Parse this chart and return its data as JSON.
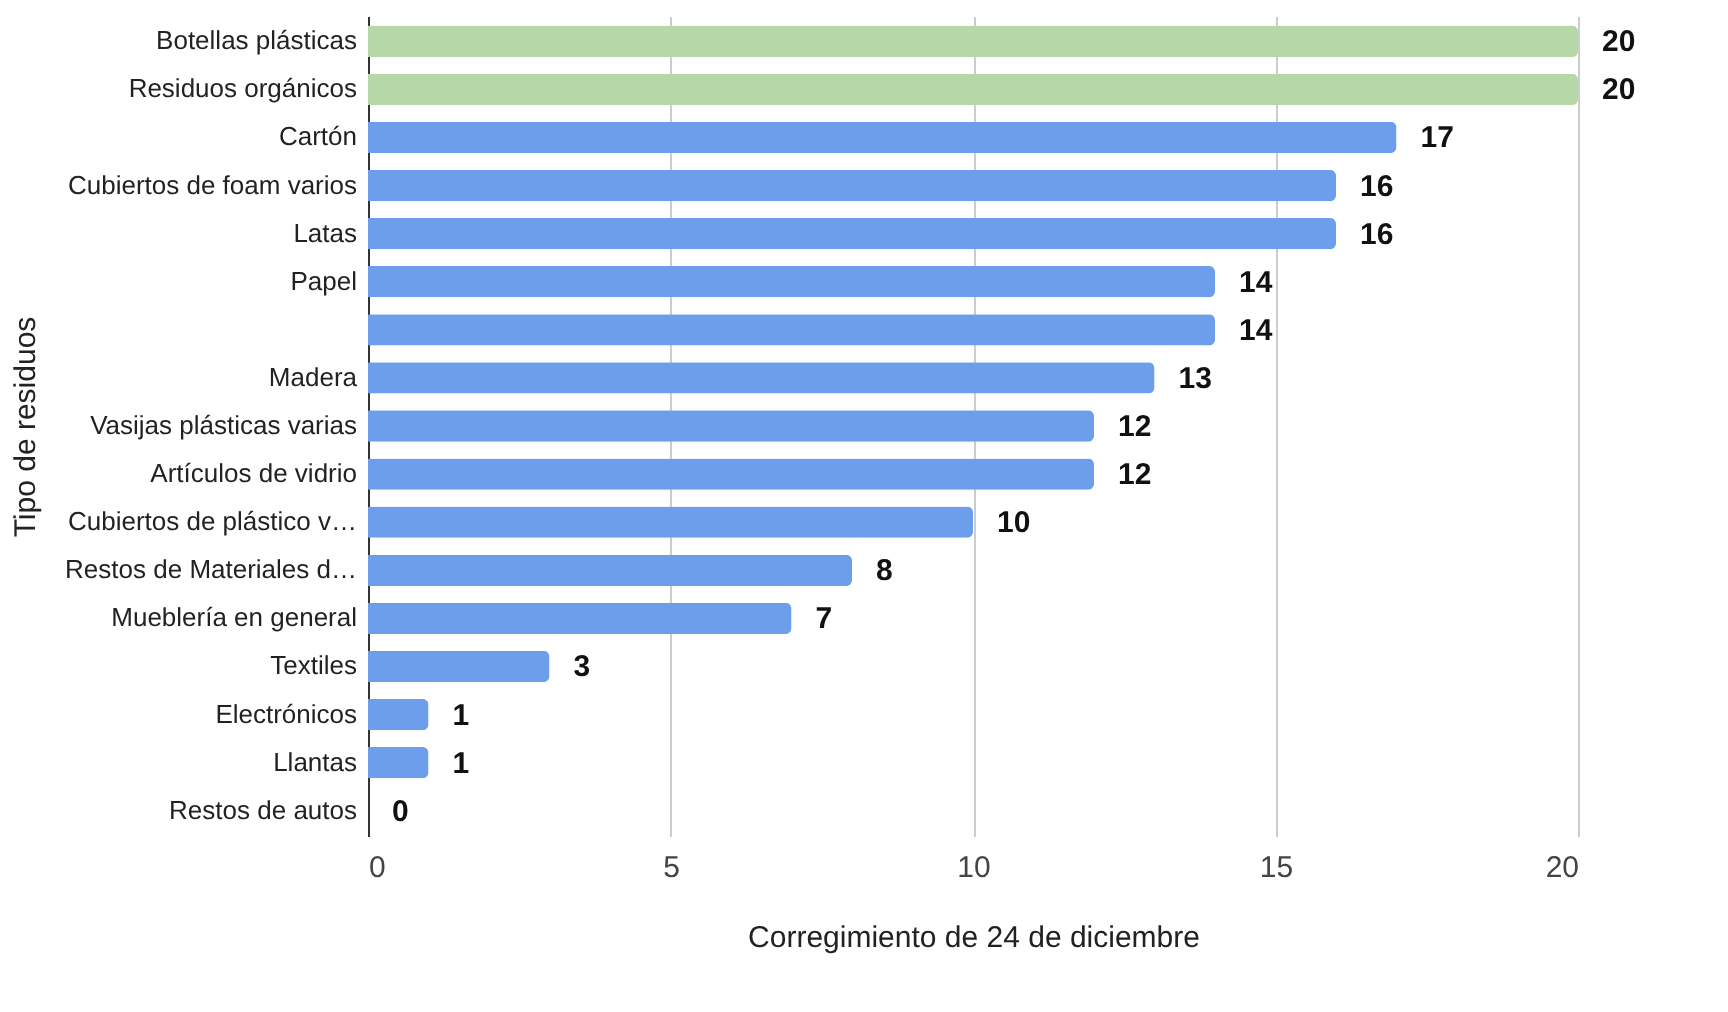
{
  "chart_data": {
    "type": "bar",
    "orientation": "horizontal",
    "xlabel": "Corregimiento de 24 de diciembre",
    "ylabel": "Tipo de residuos",
    "categories": [
      "Botellas plásticas",
      "Residuos orgánicos",
      "Cartón",
      "Cubiertos de foam varios",
      "Latas",
      "Papel",
      null,
      "Madera",
      "Vasijas plásticas varias",
      "Artículos de vidrio",
      "Cubiertos de plástico v…",
      "Restos de Materiales d…",
      "Mueblería en general",
      "Textiles",
      "Electrónicos",
      "Llantas",
      "Restos de autos"
    ],
    "values": [
      20,
      20,
      17,
      16,
      16,
      14,
      14,
      13,
      12,
      12,
      10,
      8,
      7,
      3,
      1,
      1,
      0
    ],
    "colors": [
      "#b6d7a8",
      "#b6d7a8",
      "#6d9eeb",
      "#6d9eeb",
      "#6d9eeb",
      "#6d9eeb",
      "#6d9eeb",
      "#6d9eeb",
      "#6d9eeb",
      "#6d9eeb",
      "#6d9eeb",
      "#6d9eeb",
      "#6d9eeb",
      "#6d9eeb",
      "#6d9eeb",
      "#6d9eeb",
      "#6d9eeb"
    ],
    "xlim": [
      0,
      20
    ],
    "xticks": [
      0,
      5,
      10,
      15,
      20
    ],
    "grid": "x",
    "data_labels": true
  }
}
